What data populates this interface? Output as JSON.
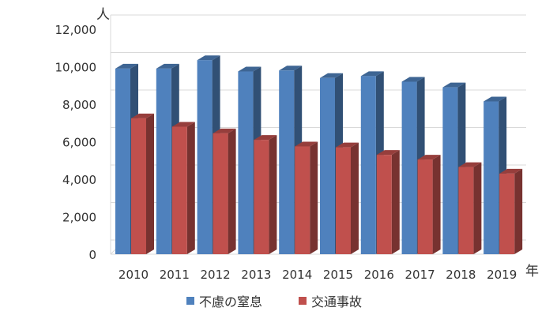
{
  "chart_data": {
    "type": "bar",
    "subtype": "3d-clustered-column",
    "title": "",
    "xlabel": "年",
    "ylabel": "人",
    "ylim": [
      0,
      12000
    ],
    "yticks": [
      0,
      2000,
      4000,
      6000,
      8000,
      10000,
      12000
    ],
    "ytick_labels": [
      "0",
      "2,000",
      "4,000",
      "6,000",
      "8,000",
      "10,000",
      "12,000"
    ],
    "grid": true,
    "legend_position": "bottom",
    "categories": [
      "2010",
      "2011",
      "2012",
      "2013",
      "2014",
      "2015",
      "2016",
      "2017",
      "2018",
      "2019"
    ],
    "series": [
      {
        "name": "不慮の窒息",
        "color": "#4F81BD",
        "values": [
          9900,
          9900,
          10350,
          9750,
          9800,
          9400,
          9500,
          9200,
          8900,
          8150
        ]
      },
      {
        "name": "交通事故",
        "color": "#C0504D",
        "values": [
          7250,
          6800,
          6450,
          6100,
          5750,
          5700,
          5300,
          5050,
          4650,
          4300
        ]
      }
    ]
  }
}
